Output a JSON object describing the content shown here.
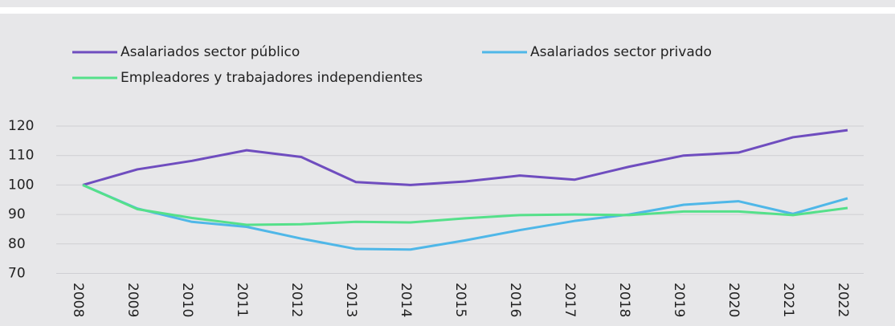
{
  "chart_data": {
    "type": "line",
    "categories": [
      "2008",
      "2009",
      "2010",
      "2011",
      "2012",
      "2013",
      "2014",
      "2015",
      "2016",
      "2017",
      "2018",
      "2019",
      "2020",
      "2021",
      "2022"
    ],
    "series": [
      {
        "name": "Asalariados sector público",
        "color": "#6f4dbf",
        "values": [
          100,
          105.3,
          108.2,
          111.8,
          109.5,
          101,
          100,
          101.2,
          103.2,
          101.8,
          106.2,
          110,
          111,
          116.2,
          118.6
        ]
      },
      {
        "name": "Asalariados sector privado",
        "color": "#4fb7e8",
        "values": [
          100,
          92,
          87.5,
          85.8,
          81.8,
          78.3,
          78.1,
          81.2,
          84.7,
          87.8,
          90,
          93.3,
          94.5,
          90.2,
          95.5
        ]
      },
      {
        "name": "Empleadores y trabajadores independientes",
        "color": "#55e08a",
        "values": [
          100,
          91.8,
          88.8,
          86.5,
          86.7,
          87.5,
          87.3,
          88.7,
          89.8,
          90,
          89.8,
          91,
          91,
          89.8,
          92.2
        ]
      }
    ],
    "ylim": [
      70,
      120
    ],
    "yticks": [
      70,
      80,
      90,
      100,
      110,
      120
    ],
    "grid": true
  }
}
